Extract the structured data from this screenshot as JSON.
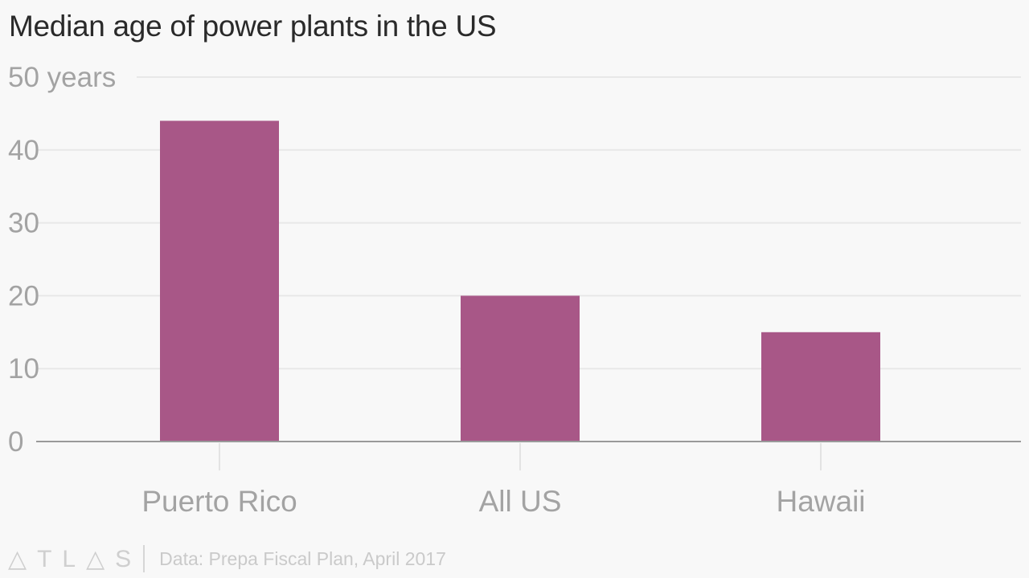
{
  "chart_data": {
    "type": "bar",
    "title": "Median age of power plants in the US",
    "categories": [
      "Puerto Rico",
      "All US",
      "Hawaii"
    ],
    "values": [
      44,
      20,
      15
    ],
    "xlabel": "",
    "ylabel": "",
    "ylim": [
      0,
      50
    ],
    "yticks": [
      0,
      10,
      20,
      30,
      40,
      50
    ],
    "ytick_labels": [
      "0",
      "10",
      "20",
      "30",
      "40",
      "50 years"
    ],
    "grid": true,
    "bar_color": "#a85787"
  },
  "footer": {
    "logo": "ATLAS",
    "source": "Data: Prepa Fiscal Plan, April 2017"
  }
}
